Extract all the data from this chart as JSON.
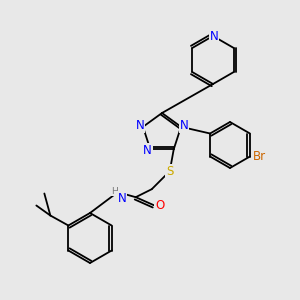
{
  "background_color": "#e8e8e8",
  "atom_colors": {
    "N": "#0000ff",
    "O": "#ff0000",
    "S": "#ccaa00",
    "Br": "#cc6600",
    "C": "#000000",
    "H": "#777777"
  },
  "bond_color": "#000000",
  "bond_lw": 1.3,
  "font_size": 8.5
}
